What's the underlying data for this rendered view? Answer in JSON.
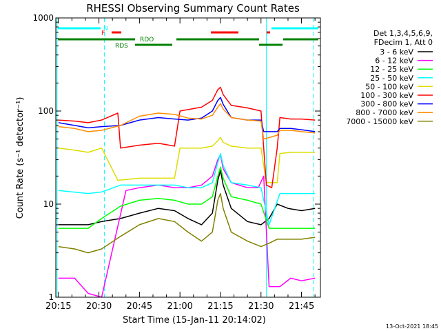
{
  "chart_data": {
    "type": "line",
    "title": "RHESSI Observing Summary Count Rates",
    "xlabel": "Start Time (15-Jan-11 20:14:02)",
    "ylabel": "Count Rate (s⁻¹ detector⁻¹)",
    "y_scale": "log",
    "ylim": [
      1,
      1000
    ],
    "xlim": [
      "20:14:02",
      "21:52:00"
    ],
    "x_ticks": [
      "20:15",
      "20:30",
      "20:45",
      "21:00",
      "21:15",
      "21:30",
      "21:45"
    ],
    "y_ticks": [
      "1",
      "10",
      "100",
      "1000"
    ],
    "footer": "13-Oct-2021 18:45",
    "legend": {
      "placement": "right",
      "header": [
        "Det 1,3,4,5,6,9,",
        "FDecim 1, Att 0"
      ]
    },
    "flags": [
      {
        "label": "N",
        "color": "#00ffff"
      },
      {
        "label": "F",
        "color": "#ff0000"
      },
      {
        "label": "RDO",
        "color": "#008000"
      },
      {
        "label": "RDS",
        "color": "#008000"
      }
    ],
    "vertical_markers": [
      {
        "time": "20:14:30",
        "style": "solid",
        "color": "#00ffff"
      },
      {
        "time": "20:32:00",
        "style": "dashed",
        "color": "#00ffff"
      },
      {
        "time": "21:32:00",
        "style": "solid",
        "color": "#00ffff"
      },
      {
        "time": "21:49:30",
        "style": "dashed",
        "color": "#00ffff"
      }
    ],
    "series": [
      {
        "name": "3 - 6 keV",
        "color": "#000000",
        "points": [
          [
            "20:15",
            6
          ],
          [
            "20:26",
            6
          ],
          [
            "20:31",
            6.5
          ],
          [
            "20:38",
            7
          ],
          [
            "20:45",
            8
          ],
          [
            "20:52",
            9
          ],
          [
            "20:58",
            8.5
          ],
          [
            "21:03",
            7
          ],
          [
            "21:08",
            6
          ],
          [
            "21:12",
            8
          ],
          [
            "21:14",
            18
          ],
          [
            "21:15",
            23
          ],
          [
            "21:16",
            16
          ],
          [
            "21:19",
            9
          ],
          [
            "21:25",
            6.5
          ],
          [
            "21:30",
            6
          ],
          [
            "21:33",
            7
          ],
          [
            "21:36",
            10
          ],
          [
            "21:40",
            9
          ],
          [
            "21:45",
            8.5
          ],
          [
            "21:50",
            9
          ]
        ]
      },
      {
        "name": "6 - 12 keV",
        "color": "#ff00ff",
        "points": [
          [
            "20:15",
            1.6
          ],
          [
            "20:21",
            1.6
          ],
          [
            "20:26",
            1.1
          ],
          [
            "20:31",
            1
          ],
          [
            "20:40",
            14
          ],
          [
            "20:45",
            15
          ],
          [
            "20:52",
            16
          ],
          [
            "20:58",
            15
          ],
          [
            "21:03",
            15
          ],
          [
            "21:08",
            16
          ],
          [
            "21:12",
            20
          ],
          [
            "21:14",
            30
          ],
          [
            "21:15",
            34
          ],
          [
            "21:16",
            24
          ],
          [
            "21:19",
            17
          ],
          [
            "21:25",
            15
          ],
          [
            "21:29",
            15
          ],
          [
            "21:31",
            20
          ],
          [
            "21:33",
            1.3
          ],
          [
            "21:37",
            1.3
          ],
          [
            "21:41",
            1.6
          ],
          [
            "21:45",
            1.5
          ],
          [
            "21:50",
            1.6
          ]
        ]
      },
      {
        "name": "12 - 25 keV",
        "color": "#00ff00",
        "points": [
          [
            "20:15",
            5.5
          ],
          [
            "20:26",
            5.5
          ],
          [
            "20:31",
            7
          ],
          [
            "20:38",
            9.5
          ],
          [
            "20:45",
            11
          ],
          [
            "20:52",
            11.5
          ],
          [
            "20:58",
            11
          ],
          [
            "21:03",
            10
          ],
          [
            "21:08",
            10
          ],
          [
            "21:12",
            12
          ],
          [
            "21:14",
            20
          ],
          [
            "21:15",
            25
          ],
          [
            "21:16",
            19
          ],
          [
            "21:19",
            12
          ],
          [
            "21:25",
            11
          ],
          [
            "21:30",
            10
          ],
          [
            "21:33",
            5.5
          ],
          [
            "21:37",
            5.5
          ],
          [
            "21:41",
            5.5
          ],
          [
            "21:45",
            5.5
          ],
          [
            "21:50",
            5.5
          ]
        ]
      },
      {
        "name": "25 - 50 keV",
        "color": "#00ffff",
        "points": [
          [
            "20:15",
            14
          ],
          [
            "20:26",
            13
          ],
          [
            "20:31",
            13.5
          ],
          [
            "20:38",
            16
          ],
          [
            "20:45",
            16
          ],
          [
            "20:52",
            16
          ],
          [
            "20:58",
            16
          ],
          [
            "21:03",
            15
          ],
          [
            "21:08",
            15
          ],
          [
            "21:12",
            17
          ],
          [
            "21:14",
            28
          ],
          [
            "21:15",
            35
          ],
          [
            "21:16",
            26
          ],
          [
            "21:19",
            17
          ],
          [
            "21:25",
            16
          ],
          [
            "21:30",
            15
          ],
          [
            "21:33",
            6
          ],
          [
            "21:37",
            13
          ],
          [
            "21:41",
            13
          ],
          [
            "21:45",
            13
          ],
          [
            "21:50",
            13
          ]
        ]
      },
      {
        "name": "50 - 100 keV",
        "color": "#dddd00",
        "points": [
          [
            "20:15",
            40
          ],
          [
            "20:21",
            38
          ],
          [
            "20:26",
            36
          ],
          [
            "20:31",
            40
          ],
          [
            "20:37",
            18
          ],
          [
            "20:45",
            19
          ],
          [
            "20:52",
            19
          ],
          [
            "20:58",
            19
          ],
          [
            "21:00",
            40
          ],
          [
            "21:08",
            40
          ],
          [
            "21:12",
            42
          ],
          [
            "21:14",
            48
          ],
          [
            "21:15",
            52
          ],
          [
            "21:16",
            46
          ],
          [
            "21:19",
            42
          ],
          [
            "21:25",
            40
          ],
          [
            "21:30",
            40
          ],
          [
            "21:32",
            17
          ],
          [
            "21:36",
            17
          ],
          [
            "21:37",
            35
          ],
          [
            "21:41",
            36
          ],
          [
            "21:45",
            36
          ],
          [
            "21:50",
            36
          ]
        ]
      },
      {
        "name": "100 - 300 keV",
        "color": "#ff0000",
        "points": [
          [
            "20:15",
            80
          ],
          [
            "20:21",
            78
          ],
          [
            "20:26",
            75
          ],
          [
            "20:31",
            80
          ],
          [
            "20:37",
            95
          ],
          [
            "20:38",
            40
          ],
          [
            "20:45",
            43
          ],
          [
            "20:52",
            45
          ],
          [
            "20:58",
            42
          ],
          [
            "21:00",
            100
          ],
          [
            "21:08",
            110
          ],
          [
            "21:12",
            130
          ],
          [
            "21:14",
            170
          ],
          [
            "21:15",
            180
          ],
          [
            "21:16",
            150
          ],
          [
            "21:19",
            115
          ],
          [
            "21:25",
            108
          ],
          [
            "21:30",
            100
          ],
          [
            "21:32",
            16
          ],
          [
            "21:34",
            15
          ],
          [
            "21:36",
            40
          ],
          [
            "21:37",
            85
          ],
          [
            "21:41",
            82
          ],
          [
            "21:45",
            82
          ],
          [
            "21:50",
            80
          ]
        ]
      },
      {
        "name": "300 - 800 keV",
        "color": "#0000ff",
        "points": [
          [
            "20:15",
            75
          ],
          [
            "20:21",
            70
          ],
          [
            "20:26",
            66
          ],
          [
            "20:31",
            68
          ],
          [
            "20:38",
            70
          ],
          [
            "20:45",
            80
          ],
          [
            "20:52",
            85
          ],
          [
            "20:58",
            82
          ],
          [
            "21:03",
            80
          ],
          [
            "21:08",
            84
          ],
          [
            "21:12",
            100
          ],
          [
            "21:14",
            130
          ],
          [
            "21:15",
            140
          ],
          [
            "21:16",
            118
          ],
          [
            "21:19",
            85
          ],
          [
            "21:25",
            80
          ],
          [
            "21:30",
            80
          ],
          [
            "21:31",
            60
          ],
          [
            "21:36",
            60
          ],
          [
            "21:37",
            65
          ],
          [
            "21:41",
            65
          ],
          [
            "21:45",
            63
          ],
          [
            "21:50",
            60
          ]
        ]
      },
      {
        "name": "800 - 7000 keV",
        "color": "#ff8c00",
        "points": [
          [
            "20:15",
            68
          ],
          [
            "20:21",
            65
          ],
          [
            "20:26",
            60
          ],
          [
            "20:31",
            62
          ],
          [
            "20:38",
            70
          ],
          [
            "20:45",
            88
          ],
          [
            "20:52",
            95
          ],
          [
            "20:58",
            92
          ],
          [
            "21:03",
            84
          ],
          [
            "21:08",
            82
          ],
          [
            "21:12",
            90
          ],
          [
            "21:14",
            110
          ],
          [
            "21:15",
            120
          ],
          [
            "21:16",
            105
          ],
          [
            "21:19",
            85
          ],
          [
            "21:25",
            80
          ],
          [
            "21:30",
            78
          ],
          [
            "21:31",
            50
          ],
          [
            "21:36",
            55
          ],
          [
            "21:37",
            62
          ],
          [
            "21:41",
            62
          ],
          [
            "21:45",
            60
          ],
          [
            "21:50",
            58
          ]
        ]
      },
      {
        "name": "7000 - 15000 keV",
        "color": "#808000",
        "points": [
          [
            "20:15",
            3.5
          ],
          [
            "20:21",
            3.3
          ],
          [
            "20:26",
            3
          ],
          [
            "20:31",
            3.3
          ],
          [
            "20:38",
            4.5
          ],
          [
            "20:45",
            6
          ],
          [
            "20:52",
            7
          ],
          [
            "20:58",
            6.5
          ],
          [
            "21:03",
            5
          ],
          [
            "21:08",
            4
          ],
          [
            "21:12",
            5
          ],
          [
            "21:14",
            11
          ],
          [
            "21:15",
            13
          ],
          [
            "21:16",
            9
          ],
          [
            "21:19",
            5
          ],
          [
            "21:25",
            4
          ],
          [
            "21:30",
            3.5
          ],
          [
            "21:33",
            3.8
          ],
          [
            "21:36",
            4.2
          ],
          [
            "21:40",
            4.2
          ],
          [
            "21:45",
            4.2
          ],
          [
            "21:50",
            4.4
          ]
        ]
      }
    ]
  }
}
